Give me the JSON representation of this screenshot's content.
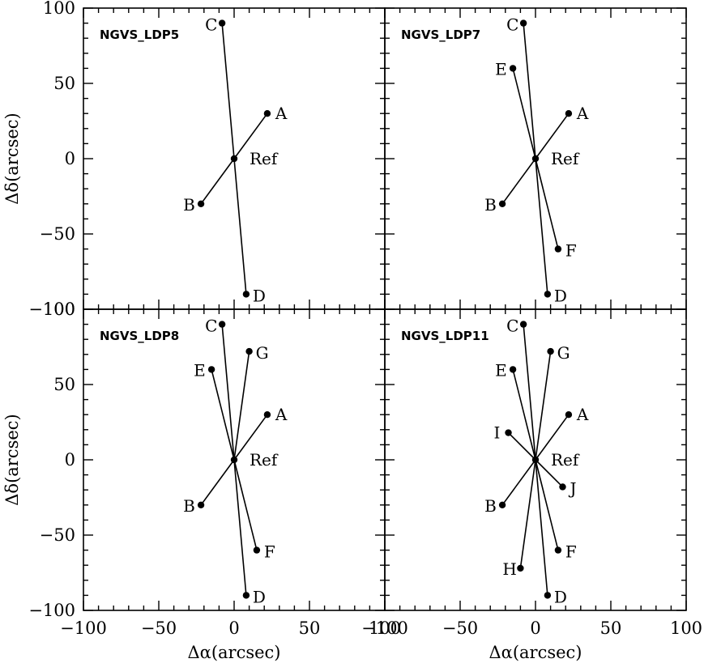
{
  "chart_data": {
    "type": "scatter",
    "xlabel": "Δα(arcsec)",
    "ylabel": "Δδ(arcsec)",
    "xlim": [
      -100,
      100
    ],
    "ylim": [
      -100,
      100
    ],
    "xticks": [
      -100,
      -50,
      0,
      50,
      100
    ],
    "yticks": [
      -100,
      -50,
      0,
      50,
      100
    ],
    "xtick_labels": [
      "−100",
      "−50",
      "0",
      "50",
      "100"
    ],
    "ytick_labels": [
      "−100",
      "−50",
      "0",
      "50",
      "100"
    ],
    "grid": false,
    "reference_label": "Ref",
    "panels": [
      {
        "title": "NGVS_LDP5",
        "points": [
          {
            "label": "A",
            "x": 22,
            "y": 30
          },
          {
            "label": "B",
            "x": -22,
            "y": -30
          },
          {
            "label": "C",
            "x": -8,
            "y": 90
          },
          {
            "label": "D",
            "x": 8,
            "y": -90
          }
        ]
      },
      {
        "title": "NGVS_LDP7",
        "points": [
          {
            "label": "A",
            "x": 22,
            "y": 30
          },
          {
            "label": "B",
            "x": -22,
            "y": -30
          },
          {
            "label": "C",
            "x": -8,
            "y": 90
          },
          {
            "label": "D",
            "x": 8,
            "y": -90
          },
          {
            "label": "E",
            "x": -15,
            "y": 60
          },
          {
            "label": "F",
            "x": 15,
            "y": -60
          }
        ]
      },
      {
        "title": "NGVS_LDP8",
        "points": [
          {
            "label": "A",
            "x": 22,
            "y": 30
          },
          {
            "label": "B",
            "x": -22,
            "y": -30
          },
          {
            "label": "C",
            "x": -8,
            "y": 90
          },
          {
            "label": "D",
            "x": 8,
            "y": -90
          },
          {
            "label": "E",
            "x": -15,
            "y": 60
          },
          {
            "label": "F",
            "x": 15,
            "y": -60
          },
          {
            "label": "G",
            "x": 10,
            "y": 72
          }
        ]
      },
      {
        "title": "NGVS_LDP11",
        "points": [
          {
            "label": "A",
            "x": 22,
            "y": 30
          },
          {
            "label": "B",
            "x": -22,
            "y": -30
          },
          {
            "label": "C",
            "x": -8,
            "y": 90
          },
          {
            "label": "D",
            "x": 8,
            "y": -90
          },
          {
            "label": "E",
            "x": -15,
            "y": 60
          },
          {
            "label": "F",
            "x": 15,
            "y": -60
          },
          {
            "label": "G",
            "x": 10,
            "y": 72
          },
          {
            "label": "H",
            "x": -10,
            "y": -72
          },
          {
            "label": "I",
            "x": -18,
            "y": 18
          },
          {
            "label": "J",
            "x": 18,
            "y": -18
          }
        ]
      }
    ]
  }
}
